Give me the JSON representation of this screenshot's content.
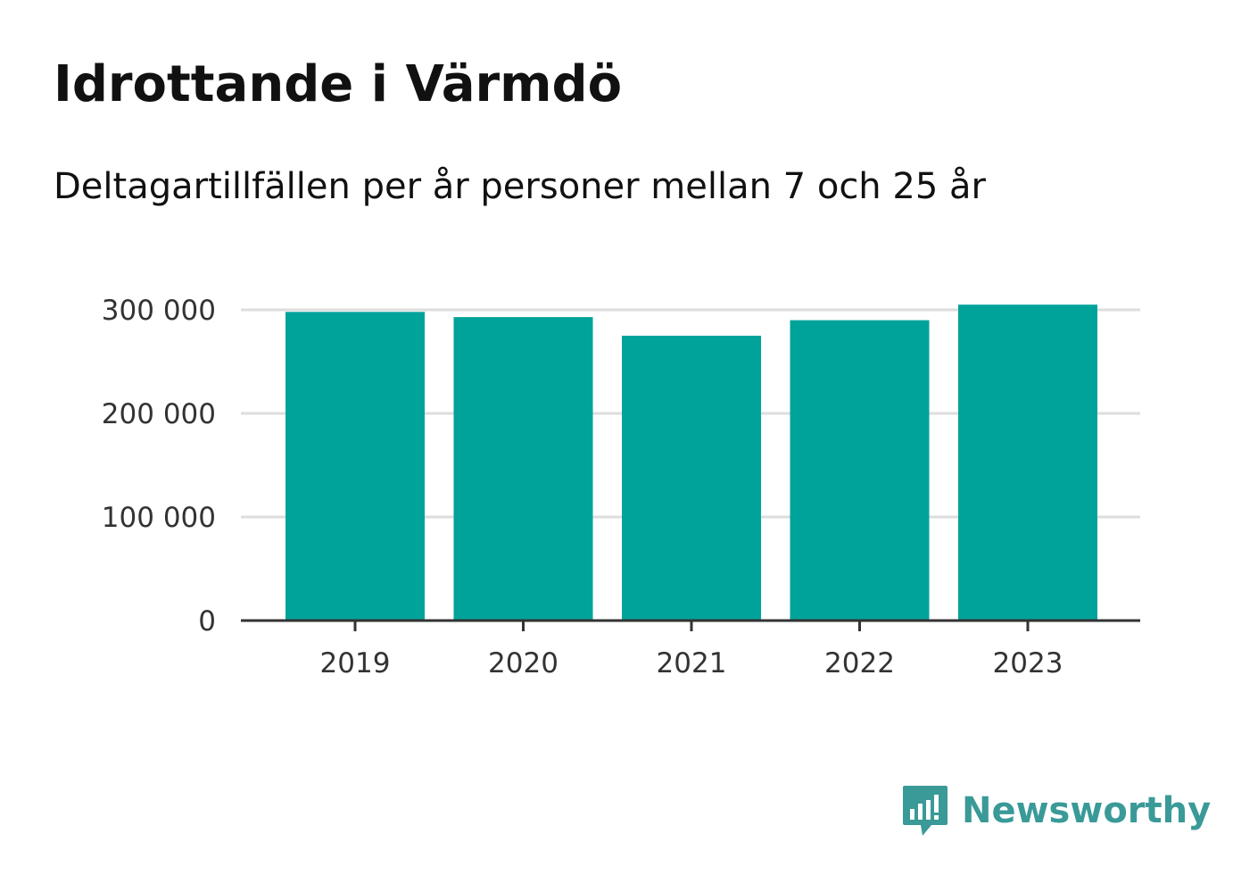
{
  "title": "Idrottande i Värmdö",
  "subtitle": "Deltagartillfällen per år personer mellan 7 och 25 år",
  "brand": {
    "name": "Newsworthy",
    "color": "#3a9a98",
    "icon": "newsworthy-logo-icon"
  },
  "colors": {
    "bar": "#00a39a",
    "grid": "#dddddd",
    "axis": "#333333"
  },
  "chart_data": {
    "type": "bar",
    "categories": [
      "2019",
      "2020",
      "2021",
      "2022",
      "2023"
    ],
    "values": [
      298000,
      293000,
      275000,
      290000,
      305000
    ],
    "ylim": [
      0,
      300000
    ],
    "yticks": [
      0,
      100000,
      200000,
      300000
    ],
    "ytick_labels": [
      "0",
      "100 000",
      "200 000",
      "300 000"
    ],
    "grid": true,
    "xlabel": "",
    "ylabel": ""
  }
}
